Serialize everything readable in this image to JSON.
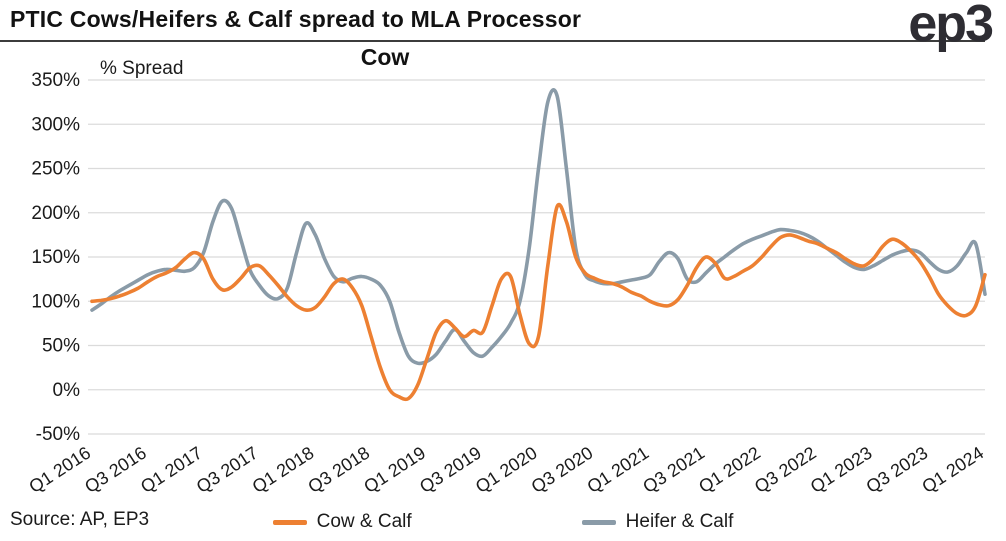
{
  "header": {
    "title_line1": "PTIC Cows/Heifers & Calf spread to MLA Processor",
    "title_line2": "Cow",
    "logo_text": "ep3"
  },
  "y_axis_label": "% Spread",
  "source": "Source: AP, EP3",
  "legend": [
    {
      "label": "Cow & Calf",
      "color": "#ED8032"
    },
    {
      "label": "Heifer & Calf",
      "color": "#8A9BA8"
    }
  ],
  "colors": {
    "cow_calf": "#ED8032",
    "heifer_calf": "#8A9BA8",
    "grid": "#DBDBDB",
    "text": "#1b1b1b"
  },
  "chart_data": {
    "type": "line",
    "title": "PTIC Cows/Heifers & Calf spread to MLA Processor Cow",
    "ylabel": "% Spread",
    "ylim": [
      -50,
      350
    ],
    "y_ticks": [
      350,
      300,
      250,
      200,
      150,
      100,
      50,
      0,
      -50
    ],
    "y_tick_suffix": "%",
    "grid": "horizontal",
    "legend_position": "bottom",
    "x_unit": "monthly points, Jan 2016 to Jan 2024",
    "x_tick_positions": [
      0,
      6,
      12,
      18,
      24,
      30,
      36,
      42,
      48,
      54,
      60,
      66,
      72,
      78,
      84,
      90,
      96
    ],
    "x_tick_labels": [
      "Q1 2016",
      "Q3 2016",
      "Q1 2017",
      "Q3 2017",
      "Q1 2018",
      "Q3 2018",
      "Q1 2019",
      "Q3 2019",
      "Q1 2020",
      "Q3 2020",
      "Q1 2021",
      "Q3 2021",
      "Q1 2022",
      "Q3 2022",
      "Q1 2023",
      "Q3 2023",
      "Q1 2024"
    ],
    "series": [
      {
        "name": "Heifer & Calf",
        "color": "#8A9BA8",
        "values": [
          90,
          97,
          105,
          112,
          118,
          124,
          130,
          134,
          136,
          135,
          134,
          138,
          155,
          190,
          213,
          205,
          170,
          135,
          118,
          106,
          103,
          115,
          155,
          188,
          175,
          148,
          128,
          122,
          126,
          128,
          125,
          118,
          100,
          65,
          38,
          30,
          32,
          40,
          55,
          68,
          55,
          42,
          38,
          48,
          60,
          75,
          100,
          160,
          250,
          325,
          332,
          250,
          160,
          130,
          123,
          120,
          120,
          122,
          124,
          126,
          130,
          145,
          155,
          148,
          125,
          122,
          132,
          142,
          150,
          158,
          165,
          170,
          174,
          178,
          181,
          180,
          178,
          174,
          168,
          160,
          152,
          144,
          138,
          136,
          140,
          146,
          152,
          156,
          158,
          155,
          145,
          136,
          133,
          140,
          155,
          165,
          108
        ]
      },
      {
        "name": "Cow & Calf",
        "color": "#ED8032",
        "values": [
          100,
          101,
          103,
          106,
          110,
          115,
          122,
          128,
          132,
          138,
          148,
          155,
          148,
          125,
          113,
          116,
          126,
          138,
          140,
          130,
          118,
          105,
          95,
          90,
          93,
          105,
          120,
          125,
          115,
          95,
          60,
          25,
          0,
          -8,
          -10,
          5,
          35,
          65,
          78,
          70,
          60,
          67,
          65,
          95,
          125,
          128,
          85,
          52,
          60,
          140,
          207,
          190,
          150,
          132,
          126,
          122,
          120,
          116,
          110,
          106,
          100,
          96,
          95,
          102,
          118,
          138,
          150,
          143,
          126,
          128,
          134,
          140,
          150,
          162,
          172,
          175,
          172,
          168,
          165,
          160,
          155,
          148,
          142,
          140,
          148,
          162,
          170,
          166,
          157,
          145,
          128,
          108,
          95,
          86,
          84,
          95,
          130
        ]
      }
    ]
  }
}
